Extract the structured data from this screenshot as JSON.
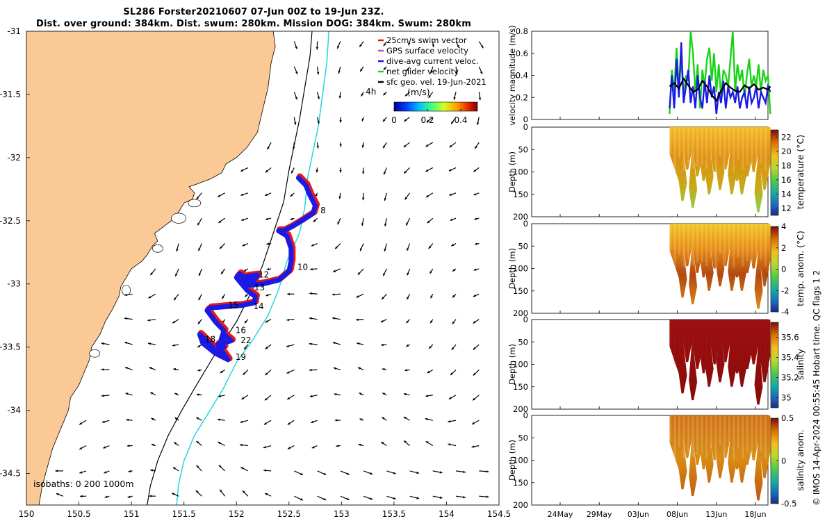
{
  "header": {
    "title_line1": "SL286 Forster20210607 07-Jun 00Z to 19-Jun 23Z.",
    "title_line2": "Dist. over ground: 384km. Dist. swum: 280km. Mission DOG: 384km. Swum: 280km"
  },
  "footer": {
    "credit": "© IMOS 14-Apr-2024 00:55:45 Hobart time. QC flags 1  2"
  },
  "colors": {
    "land": "#fbc995",
    "track": "#1a1ae6",
    "swim": "#e6191a",
    "net": "#18d418",
    "isobath_0": "#000000",
    "isobath_200": "#000000",
    "isobath_1000": "#22d6df"
  },
  "chart_data": [
    {
      "type": "map",
      "xlim": [
        150,
        154.5
      ],
      "ylim": [
        -34.75,
        -31
      ],
      "x_ticks": [
        "150",
        "150.5",
        "151",
        "151.5",
        "152",
        "152.5",
        "153",
        "153.5",
        "154",
        "154.5"
      ],
      "y_ticks": [
        "-31",
        "-31.5",
        "-32",
        "-32.5",
        "-33",
        "-33.5",
        "-34",
        "-34.5"
      ],
      "legend": [
        {
          "label": "25cm/s swim vector",
          "color": "#e6191a"
        },
        {
          "label": "GPS surface velocity",
          "color": "#c050c0"
        },
        {
          "label": "dive-avg current veloc.",
          "color": "#1a1ae6"
        },
        {
          "label": "net glider velocity",
          "color": "#18d418"
        },
        {
          "label": "sfc geo. vel. 19-Jun-2021",
          "color": "#000000"
        }
      ],
      "colorbar": {
        "label": "(m/s)",
        "ticks": [
          "0",
          "0.2",
          "0.4"
        ],
        "range": [
          0,
          0.5
        ]
      },
      "isobaths_label": "isobaths: 0   200  1000m",
      "track_hour_label": "4h",
      "track": [
        [
          152.59,
          -32.16
        ],
        [
          152.66,
          -32.22
        ],
        [
          152.7,
          -32.3
        ],
        [
          152.75,
          -32.38
        ],
        [
          152.73,
          -32.44
        ],
        [
          152.62,
          -32.5
        ],
        [
          152.52,
          -32.55
        ],
        [
          152.45,
          -32.58
        ],
        [
          152.4,
          -32.58
        ],
        [
          152.48,
          -32.62
        ],
        [
          152.52,
          -32.72
        ],
        [
          152.52,
          -32.82
        ],
        [
          152.5,
          -32.9
        ],
        [
          152.4,
          -32.97
        ],
        [
          152.25,
          -33.0
        ],
        [
          152.12,
          -33.01
        ],
        [
          152.05,
          -32.98
        ],
        [
          152.1,
          -32.94
        ],
        [
          152.2,
          -32.93
        ],
        [
          152.16,
          -32.98
        ],
        [
          152.1,
          -32.97
        ],
        [
          152.03,
          -32.92
        ],
        [
          152.0,
          -32.95
        ],
        [
          152.1,
          -33.05
        ],
        [
          152.18,
          -33.1
        ],
        [
          152.17,
          -33.15
        ],
        [
          152.05,
          -33.17
        ],
        [
          151.9,
          -33.18
        ],
        [
          151.75,
          -33.19
        ],
        [
          151.72,
          -33.21
        ],
        [
          151.8,
          -33.3
        ],
        [
          151.88,
          -33.37
        ],
        [
          151.85,
          -33.45
        ],
        [
          151.82,
          -33.55
        ],
        [
          151.75,
          -33.48
        ],
        [
          151.65,
          -33.4
        ],
        [
          151.68,
          -33.47
        ],
        [
          151.8,
          -33.55
        ],
        [
          151.92,
          -33.6
        ],
        [
          151.85,
          -33.52
        ],
        [
          151.88,
          -33.4
        ],
        [
          151.95,
          -33.45
        ],
        [
          151.82,
          -33.48
        ],
        [
          151.88,
          -33.5
        ]
      ],
      "track_labels": [
        {
          "text": "8",
          "x": 152.8,
          "y": -32.44
        },
        {
          "text": "10",
          "x": 152.58,
          "y": -32.89
        },
        {
          "text": "12",
          "x": 152.21,
          "y": -32.95
        },
        {
          "text": "13",
          "x": 152.17,
          "y": -33.05
        },
        {
          "text": "14",
          "x": 152.16,
          "y": -33.2
        },
        {
          "text": "15",
          "x": 151.92,
          "y": -33.19
        },
        {
          "text": "16",
          "x": 151.99,
          "y": -33.39
        },
        {
          "text": "18",
          "x": 151.7,
          "y": -33.46
        },
        {
          "text": "22",
          "x": 152.04,
          "y": -33.47
        },
        {
          "text": "19",
          "x": 151.99,
          "y": -33.6
        }
      ]
    },
    {
      "type": "line",
      "ylabel": "velocity magnitude (m/s)",
      "ylim": [
        0,
        0.8
      ],
      "y_ticks": [
        "0",
        "0.2",
        "0.4",
        "0.6",
        "0.8"
      ],
      "series": [
        {
          "color": "#18d418",
          "x": [
            7.0,
            7.3,
            7.6,
            7.9,
            8.2,
            8.5,
            8.8,
            9.1,
            9.4,
            9.7,
            10.0,
            10.3,
            10.6,
            10.9,
            11.2,
            11.5,
            11.8,
            12.1,
            12.4,
            12.7,
            13.0,
            13.3,
            13.6,
            13.9,
            14.2,
            14.5,
            14.8,
            15.1,
            15.4,
            15.7,
            16.0,
            16.3,
            16.6,
            16.9,
            17.2,
            17.5,
            17.8,
            18.1,
            18.4,
            18.7,
            19.0,
            19.3,
            19.6,
            19.9
          ],
          "values": [
            0.05,
            0.45,
            0.25,
            0.65,
            0.3,
            0.55,
            0.2,
            0.4,
            0.35,
            0.8,
            0.6,
            0.25,
            0.5,
            0.1,
            0.45,
            0.3,
            0.55,
            0.65,
            0.35,
            0.6,
            0.25,
            0.5,
            0.2,
            0.45,
            0.4,
            0.3,
            0.55,
            0.8,
            0.25,
            0.5,
            0.35,
            0.45,
            0.2,
            0.4,
            0.55,
            0.3,
            0.4,
            0.3,
            0.5,
            0.25,
            0.45,
            0.35,
            0.4,
            0.05
          ]
        },
        {
          "color": "#1a1ae6",
          "x": [
            7.0,
            7.3,
            7.6,
            7.9,
            8.2,
            8.5,
            8.8,
            9.1,
            9.4,
            9.7,
            10.0,
            10.3,
            10.6,
            10.9,
            11.2,
            11.5,
            11.8,
            12.1,
            12.4,
            12.7,
            13.0,
            13.3,
            13.6,
            13.9,
            14.2,
            14.5,
            14.8,
            15.1,
            15.4,
            15.7,
            16.0,
            16.3,
            16.6,
            16.9,
            17.2,
            17.5,
            17.8,
            18.1,
            18.4,
            18.7,
            19.0,
            19.3,
            19.6,
            19.9
          ],
          "values": [
            0.1,
            0.4,
            0.1,
            0.55,
            0.2,
            0.7,
            0.15,
            0.3,
            0.45,
            0.15,
            0.3,
            0.1,
            0.4,
            0.2,
            0.1,
            0.35,
            0.15,
            0.4,
            0.2,
            0.3,
            0.05,
            0.25,
            0.15,
            0.35,
            0.1,
            0.3,
            0.2,
            0.25,
            0.15,
            0.3,
            0.1,
            0.2,
            0.25,
            0.1,
            0.3,
            0.15,
            0.2,
            0.3,
            0.1,
            0.25,
            0.2,
            0.15,
            0.3,
            0.25
          ]
        },
        {
          "color": "#000000",
          "x": [
            7.0,
            7.6,
            8.2,
            8.8,
            9.4,
            10.0,
            10.6,
            11.2,
            11.8,
            12.4,
            13.0,
            13.6,
            14.2,
            14.8,
            15.4,
            16.0,
            16.6,
            17.2,
            17.8,
            18.4,
            19.0,
            19.6,
            19.9
          ],
          "values": [
            0.3,
            0.33,
            0.28,
            0.37,
            0.31,
            0.25,
            0.27,
            0.35,
            0.3,
            0.22,
            0.17,
            0.26,
            0.33,
            0.29,
            0.26,
            0.25,
            0.31,
            0.28,
            0.32,
            0.27,
            0.29,
            0.27,
            0.3
          ]
        }
      ]
    },
    {
      "type": "heatmap",
      "ylabel": "Depth (m)",
      "cbar_label": "temperature (°C)",
      "ylim": [
        200,
        0
      ],
      "y_ticks": [
        "0",
        "50",
        "100",
        "150",
        "200"
      ],
      "cbar_ticks": [
        "22",
        "20",
        "18",
        "16",
        "14",
        "12"
      ],
      "cbar_range": [
        11,
        23
      ]
    },
    {
      "type": "heatmap",
      "ylabel": "Depth (m)",
      "cbar_label": "temp. anom. (°C)",
      "ylim": [
        200,
        0
      ],
      "y_ticks": [
        "0",
        "50",
        "100",
        "150",
        "200"
      ],
      "cbar_ticks": [
        "4",
        "2",
        "0",
        "-2",
        "-4"
      ],
      "cbar_range": [
        -4,
        4
      ]
    },
    {
      "type": "heatmap",
      "ylabel": "Depth (m)",
      "cbar_label": "salinity",
      "ylim": [
        200,
        0
      ],
      "y_ticks": [
        "0",
        "50",
        "100",
        "150",
        "200"
      ],
      "cbar_ticks": [
        "35.6",
        "35.4",
        "35.2",
        "35"
      ],
      "cbar_range": [
        34.9,
        35.75
      ]
    },
    {
      "type": "heatmap",
      "ylabel": "Depth (m)",
      "cbar_label": "salinity anom.",
      "ylim": [
        200,
        0
      ],
      "y_ticks": [
        "0",
        "50",
        "100",
        "150",
        "200"
      ],
      "cbar_ticks": [
        "0.5",
        "0",
        "-0.5"
      ],
      "cbar_range": [
        -0.5,
        0.5
      ],
      "x_ticks": [
        "24May",
        "29May",
        "03Jun",
        "08Jun",
        "13Jun",
        "18Jun"
      ]
    }
  ]
}
